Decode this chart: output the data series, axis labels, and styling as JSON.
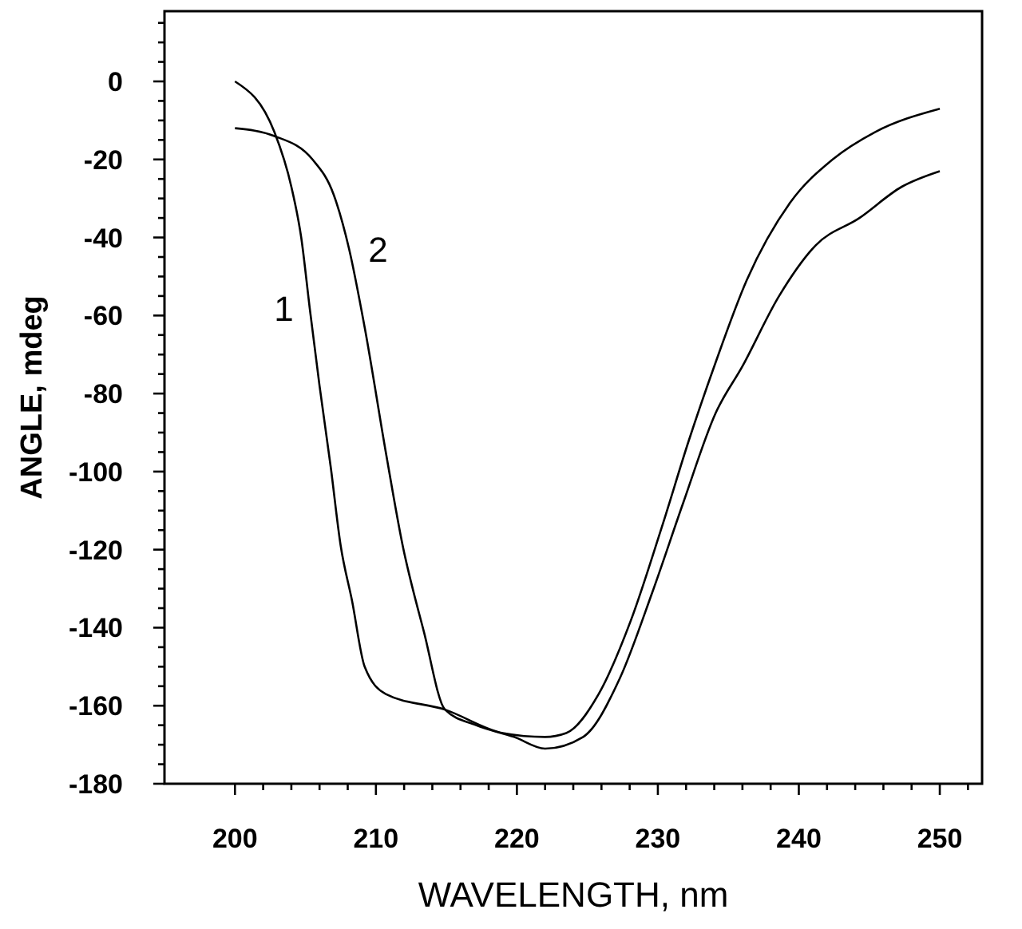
{
  "chart_data": {
    "type": "line",
    "xlabel": "WAVELENGTH, nm",
    "ylabel": "ANGLE, mdeg",
    "xlim": [
      195,
      253
    ],
    "ylim": [
      -180,
      18
    ],
    "xticks": [
      200,
      {
        "value": 202,
        "label": null
      },
      {
        "value": 204,
        "label": null
      },
      {
        "value": 206,
        "label": null
      },
      {
        "value": 208,
        "label": null
      },
      210,
      {
        "value": 212,
        "label": null
      },
      {
        "value": 214,
        "label": null
      },
      {
        "value": 216,
        "label": null
      },
      {
        "value": 218,
        "label": null
      },
      220,
      {
        "value": 222,
        "label": null
      },
      {
        "value": 224,
        "label": null
      },
      {
        "value": 226,
        "label": null
      },
      {
        "value": 228,
        "label": null
      },
      230,
      {
        "value": 232,
        "label": null
      },
      {
        "value": 234,
        "label": null
      },
      {
        "value": 236,
        "label": null
      },
      {
        "value": 238,
        "label": null
      },
      240,
      {
        "value": 242,
        "label": null
      },
      {
        "value": 244,
        "label": null
      },
      {
        "value": 246,
        "label": null
      },
      {
        "value": 248,
        "label": null
      },
      250,
      {
        "value": 252,
        "label": null
      }
    ],
    "yticks": [
      -180,
      {
        "value": -175,
        "label": null
      },
      {
        "value": -170,
        "label": null
      },
      {
        "value": -165,
        "label": null
      },
      -160,
      {
        "value": -155,
        "label": null
      },
      {
        "value": -150,
        "label": null
      },
      {
        "value": -145,
        "label": null
      },
      -140,
      {
        "value": -135,
        "label": null
      },
      {
        "value": -130,
        "label": null
      },
      {
        "value": -125,
        "label": null
      },
      -120,
      {
        "value": -115,
        "label": null
      },
      {
        "value": -110,
        "label": null
      },
      {
        "value": -105,
        "label": null
      },
      -100,
      {
        "value": -95,
        "label": null
      },
      {
        "value": -90,
        "label": null
      },
      {
        "value": -85,
        "label": null
      },
      -80,
      {
        "value": -75,
        "label": null
      },
      {
        "value": -70,
        "label": null
      },
      {
        "value": -65,
        "label": null
      },
      -60,
      {
        "value": -55,
        "label": null
      },
      {
        "value": -50,
        "label": null
      },
      {
        "value": -45,
        "label": null
      },
      -40,
      {
        "value": -35,
        "label": null
      },
      {
        "value": -30,
        "label": null
      },
      {
        "value": -25,
        "label": null
      },
      -20,
      {
        "value": -15,
        "label": null
      },
      {
        "value": -10,
        "label": null
      },
      {
        "value": -5,
        "label": null
      },
      0,
      {
        "value": 5,
        "label": null
      },
      {
        "value": 10,
        "label": null
      },
      {
        "value": 15,
        "label": null
      }
    ],
    "grid": false,
    "marker": "none",
    "line_style": "solid",
    "series": [
      {
        "name": "1",
        "color": "#000000",
        "x": [
          200,
          202.8,
          204,
          204.7,
          205.3,
          206,
          206.8,
          207.5,
          208.3,
          209.2,
          210.7,
          214.9,
          219,
          222,
          223.5,
          225.8,
          228.1,
          230.3,
          232.2,
          234.1,
          236.3,
          239.4,
          242.4,
          245.4,
          250
        ],
        "values": [
          0,
          -13,
          -27,
          -40,
          -58,
          -78,
          -99,
          -119,
          -133,
          -150,
          -157,
          -161,
          -167,
          -168,
          -167,
          -157,
          -138,
          -114,
          -92,
          -72,
          -51,
          -31,
          -20,
          -13,
          -7
        ]
      },
      {
        "name": "2",
        "color": "#000000",
        "x": [
          200,
          202.8,
          205.5,
          207,
          208.1,
          209.2,
          210.7,
          211.9,
          213.4,
          214.9,
          217.1,
          219.8,
          222,
          224.7,
          227.3,
          229.6,
          231.8,
          234.1,
          236,
          238.6,
          241.2,
          244.3,
          247.3,
          250
        ],
        "values": [
          -12,
          -14,
          -20,
          -29,
          -43,
          -63,
          -95,
          -119,
          -141,
          -161,
          -165,
          -168,
          -171,
          -168,
          -153,
          -131,
          -108,
          -85,
          -73,
          -55,
          -42,
          -35,
          -27,
          -23
        ]
      }
    ]
  }
}
